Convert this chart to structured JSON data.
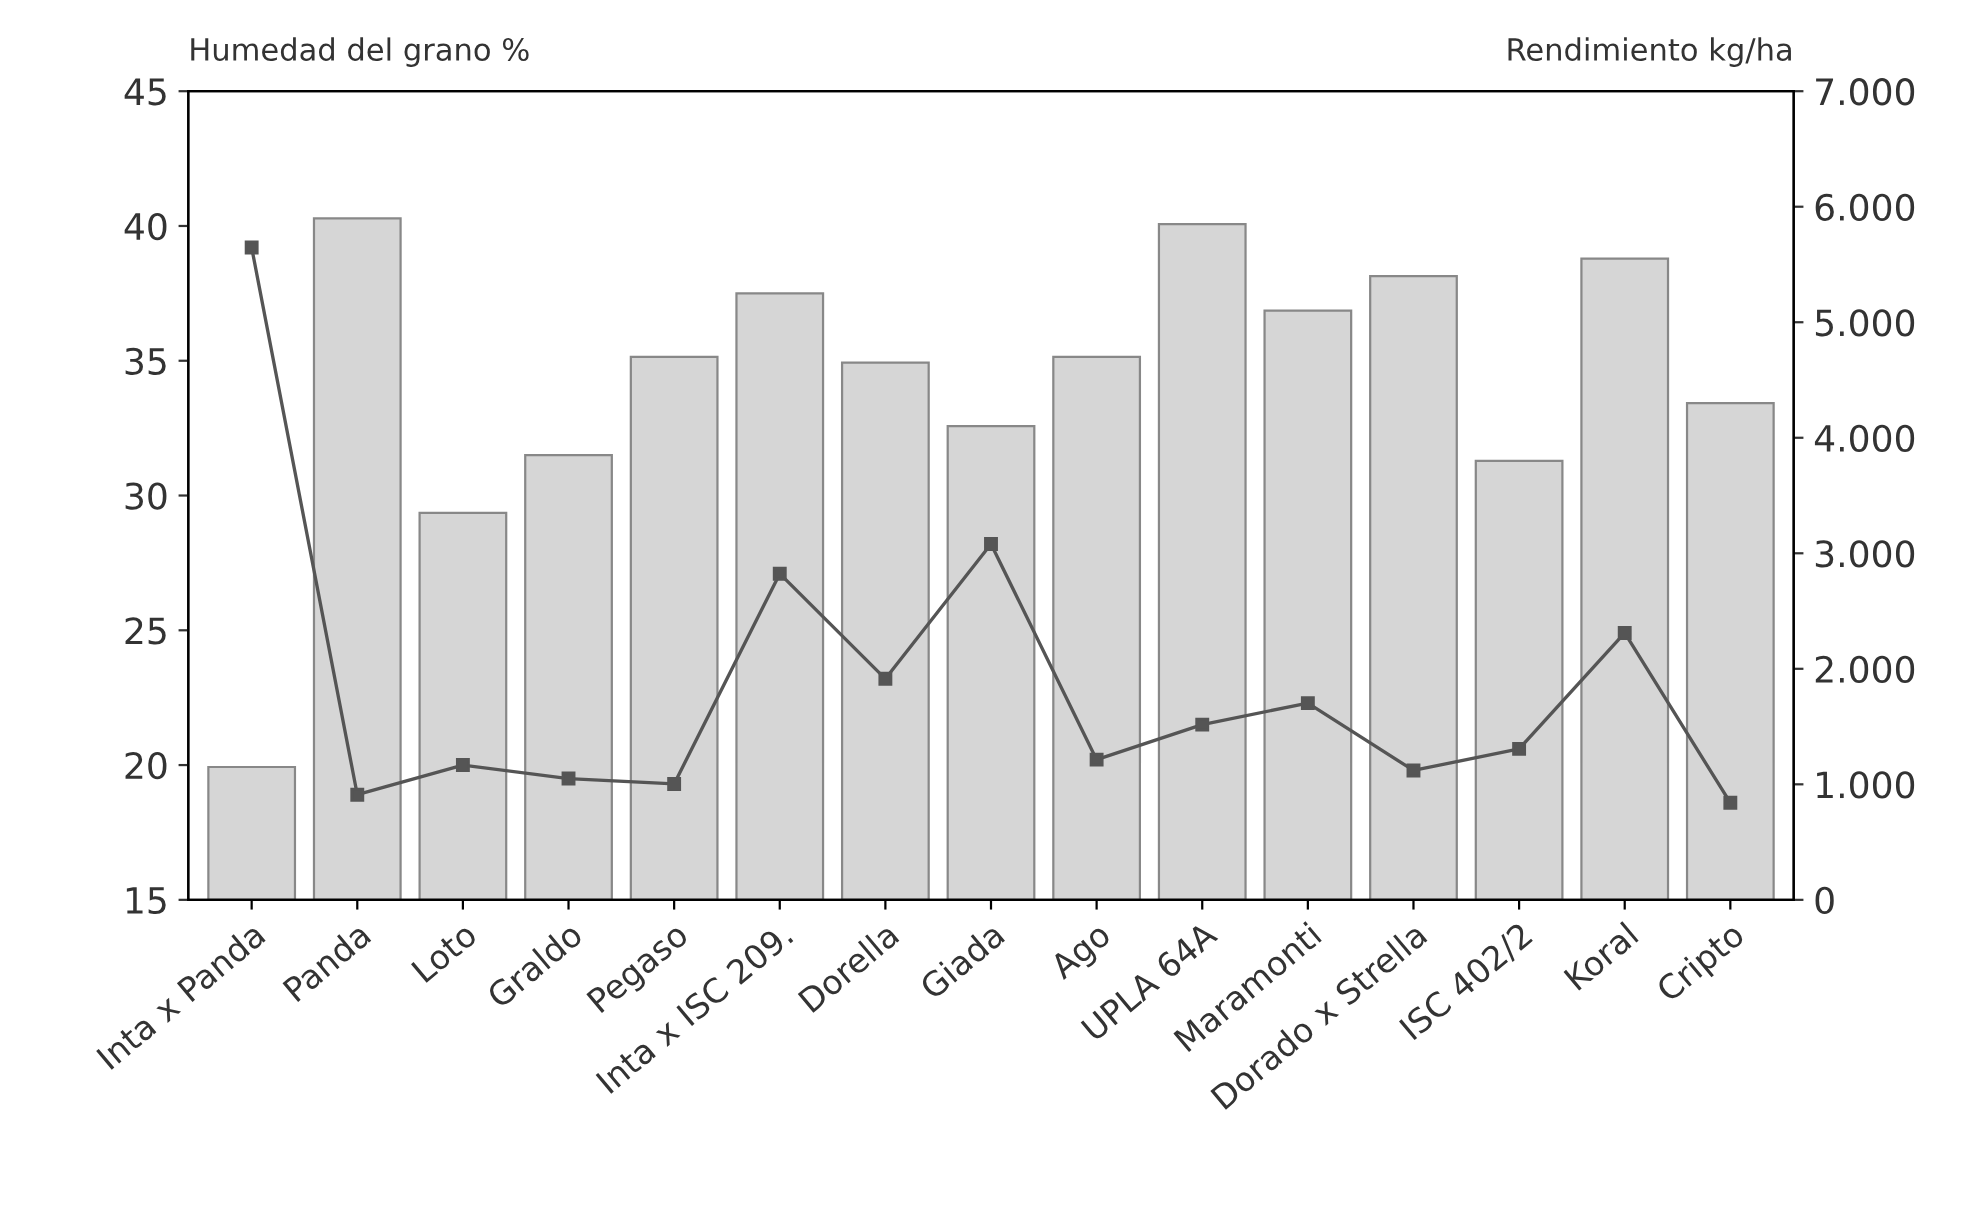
{
  "chart_data": {
    "type": "bar",
    "ylabel": "Humedad del grano %",
    "y2label": "Rendimiento kg/ha",
    "categories": [
      "Inta x Panda",
      "Panda",
      "Loto",
      "Graldo",
      "Pegaso",
      "Inta x ISC 209.",
      "Dorella",
      "Giada",
      "Ago",
      "UPLA 64A",
      "Maramonti",
      "Dorado x Strella",
      "ISC 402/2",
      "Koral",
      "Cripto"
    ],
    "series": [
      {
        "axis": "y2",
        "color": "#d6d6d6",
        "values": [
          1150,
          5900,
          3350,
          3850,
          4700,
          5250,
          4650,
          4100,
          4700,
          5850,
          5100,
          5400,
          3800,
          5550,
          4300
        ]
      },
      {
        "type": "line",
        "axis": "y",
        "color": "#555555",
        "marker": "square",
        "values": [
          39.2,
          18.9,
          20.0,
          19.5,
          19.3,
          27.1,
          23.2,
          28.2,
          20.2,
          21.5,
          22.3,
          19.8,
          20.6,
          24.9,
          18.6
        ]
      }
    ],
    "ylim": [
      15,
      45
    ],
    "yticks": [
      15,
      20,
      25,
      30,
      35,
      40,
      45
    ],
    "y2lim": [
      0,
      7000
    ],
    "y2ticks": [
      0,
      {
        "value": 1000,
        "label": "1.000"
      },
      {
        "value": 2000,
        "label": "2.000"
      },
      {
        "value": 3000,
        "label": "3.000"
      },
      {
        "value": 4000,
        "label": "4.000"
      },
      {
        "value": 5000,
        "label": "5.000"
      },
      {
        "value": 6000,
        "label": "6.000"
      },
      {
        "value": 7000,
        "label": "7.000"
      }
    ],
    "grid": false,
    "legend": false
  }
}
